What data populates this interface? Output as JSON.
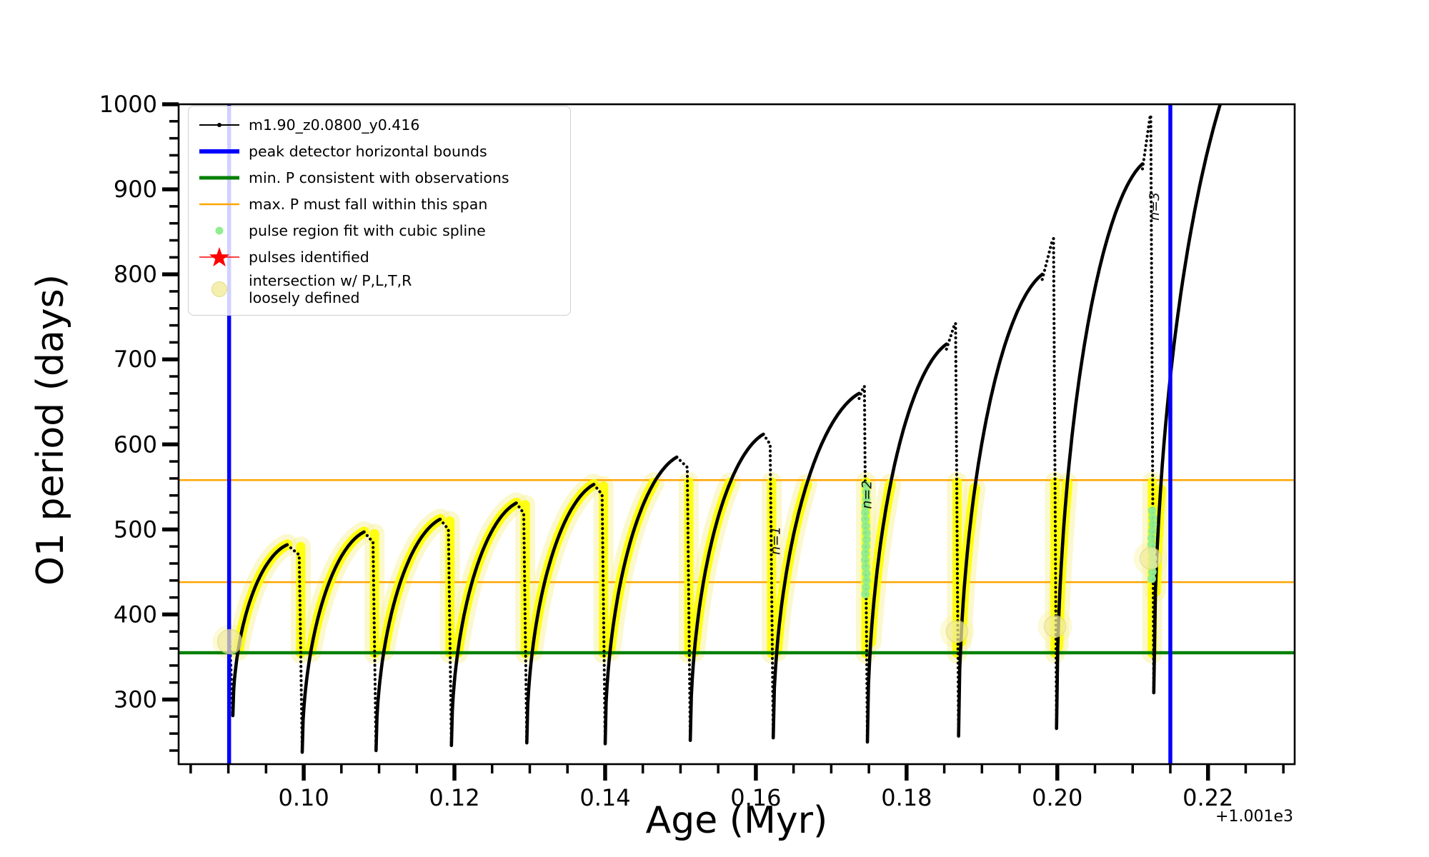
{
  "window": {
    "background": "#ffffff"
  },
  "chart_data": {
    "type": "line",
    "series_label": "m1.90_z0.0800_y0.416",
    "xlabel": "Age (Myr)",
    "ylabel": "O1 period (days)",
    "x_offset_label": "+1.001e3",
    "xlim": [
      0.0834,
      0.2315
    ],
    "ylim": [
      224,
      1000
    ],
    "xticks": {
      "values": [
        0.1,
        0.12,
        0.14,
        0.16,
        0.18,
        0.2,
        0.22
      ],
      "labels": [
        "0.10",
        "0.12",
        "0.14",
        "0.16",
        "0.18",
        "0.20",
        "0.22"
      ]
    },
    "xminor_step": 0.005,
    "yticks": {
      "values": [
        300,
        400,
        500,
        600,
        700,
        800,
        900,
        1000
      ],
      "labels": [
        "300",
        "400",
        "500",
        "600",
        "700",
        "800",
        "900",
        "1000"
      ]
    },
    "yminor_step": 20,
    "curve_color": "#000000",
    "vlines": {
      "label": "peak detector horizontal bounds",
      "color": "#0000ff",
      "x": [
        0.0901,
        0.215
      ],
      "lw": 5.5
    },
    "hline_min_P": {
      "label": "min. P consistent with observations",
      "color": "#008000",
      "y": 355,
      "lw": 4.5
    },
    "hlines_max_P": {
      "label": "max. P must fall within this span",
      "color": "#ffa500",
      "y": [
        438,
        558
      ],
      "lw": 2.5
    },
    "pulse_band": {
      "y": [
        354,
        556
      ],
      "color": "#ffff00",
      "halo_color": "#f8f3a6"
    },
    "initial_descent": {
      "from": [
        0.0902,
        368
      ],
      "to": [
        0.0906,
        281
      ]
    },
    "cycles": [
      {
        "x0": 0.0906,
        "y0": 281,
        "xp": 0.0978,
        "yp": 482,
        "spike": null,
        "xd": 0.0996,
        "y1": 238
      },
      {
        "x0": 0.0998,
        "y0": 238,
        "xp": 0.108,
        "yp": 497,
        "spike": null,
        "xd": 0.1094,
        "y1": 240
      },
      {
        "x0": 0.1096,
        "y0": 240,
        "xp": 0.1181,
        "yp": 512,
        "spike": null,
        "xd": 0.1194,
        "y1": 246
      },
      {
        "x0": 0.1196,
        "y0": 246,
        "xp": 0.1282,
        "yp": 531,
        "spike": null,
        "xd": 0.1294,
        "y1": 249
      },
      {
        "x0": 0.1296,
        "y0": 249,
        "xp": 0.1385,
        "yp": 553,
        "spike": null,
        "xd": 0.1398,
        "y1": 248
      },
      {
        "x0": 0.14,
        "y0": 248,
        "xp": 0.1495,
        "yp": 585,
        "spike": null,
        "xd": 0.1511,
        "y1": 252
      },
      {
        "x0": 0.1513,
        "y0": 252,
        "xp": 0.161,
        "yp": 612,
        "spike": null,
        "xd": 0.1621,
        "y1": 255
      },
      {
        "x0": 0.1623,
        "y0": 255,
        "xp": 0.1737,
        "yp": 660,
        "spike": 668,
        "xd": 0.1746,
        "y1": 250
      },
      {
        "x0": 0.1748,
        "y0": 250,
        "xp": 0.1853,
        "yp": 718,
        "spike": 742,
        "xd": 0.1867,
        "y1": 257
      },
      {
        "x0": 0.1869,
        "y0": 257,
        "xp": 0.198,
        "yp": 800,
        "spike": 842,
        "xd": 0.1997,
        "y1": 266
      },
      {
        "x0": 0.1999,
        "y0": 266,
        "xp": 0.2113,
        "yp": 930,
        "spike": 985,
        "xd": 0.2126,
        "y1": 308
      },
      {
        "x0": 0.2128,
        "y0": 308,
        "xp": 0.229,
        "yp": 1130,
        "spike": null,
        "xd": null,
        "y1": null
      }
    ],
    "spline_fit": {
      "color": "#90ee90",
      "regions": [
        {
          "x": 0.1746,
          "y_from": 552,
          "y_to": 428
        },
        {
          "x": 0.2126,
          "y_from": 522,
          "y_to": 440
        }
      ]
    },
    "loose_markers": {
      "color": "#f2eca0",
      "points": [
        [
          0.0902,
          368
        ],
        [
          0.1867,
          380
        ],
        [
          0.1997,
          386
        ],
        [
          0.2124,
          466
        ]
      ]
    },
    "annotations": [
      {
        "text": "n=1",
        "x": 0.1632,
        "y": 487
      },
      {
        "text": "n=2",
        "x": 0.1753,
        "y": 541
      },
      {
        "text": "n=3",
        "x": 0.2135,
        "y": 880
      }
    ]
  },
  "legend": {
    "items": [
      {
        "label": "m1.90_z0.0800_y0.416",
        "handle": "line_dot",
        "color": "#000000",
        "lw": 2
      },
      {
        "label": "peak detector horizontal bounds",
        "handle": "line",
        "color": "#0000ff",
        "lw": 6
      },
      {
        "label": "min. P consistent with observations",
        "handle": "line",
        "color": "#008000",
        "lw": 5
      },
      {
        "label": "max. P must fall within this span",
        "handle": "line",
        "color": "#ffa500",
        "lw": 2.5
      },
      {
        "label": "pulse region fit with cubic spline",
        "handle": "dot",
        "color": "#90ee90"
      },
      {
        "label": "pulses identified",
        "handle": "star",
        "color": "#ff0000"
      },
      {
        "label": "intersection w/ P,L,T,R",
        "label2": "loosely defined",
        "handle": "circle",
        "color": "#f5efaf"
      }
    ]
  }
}
